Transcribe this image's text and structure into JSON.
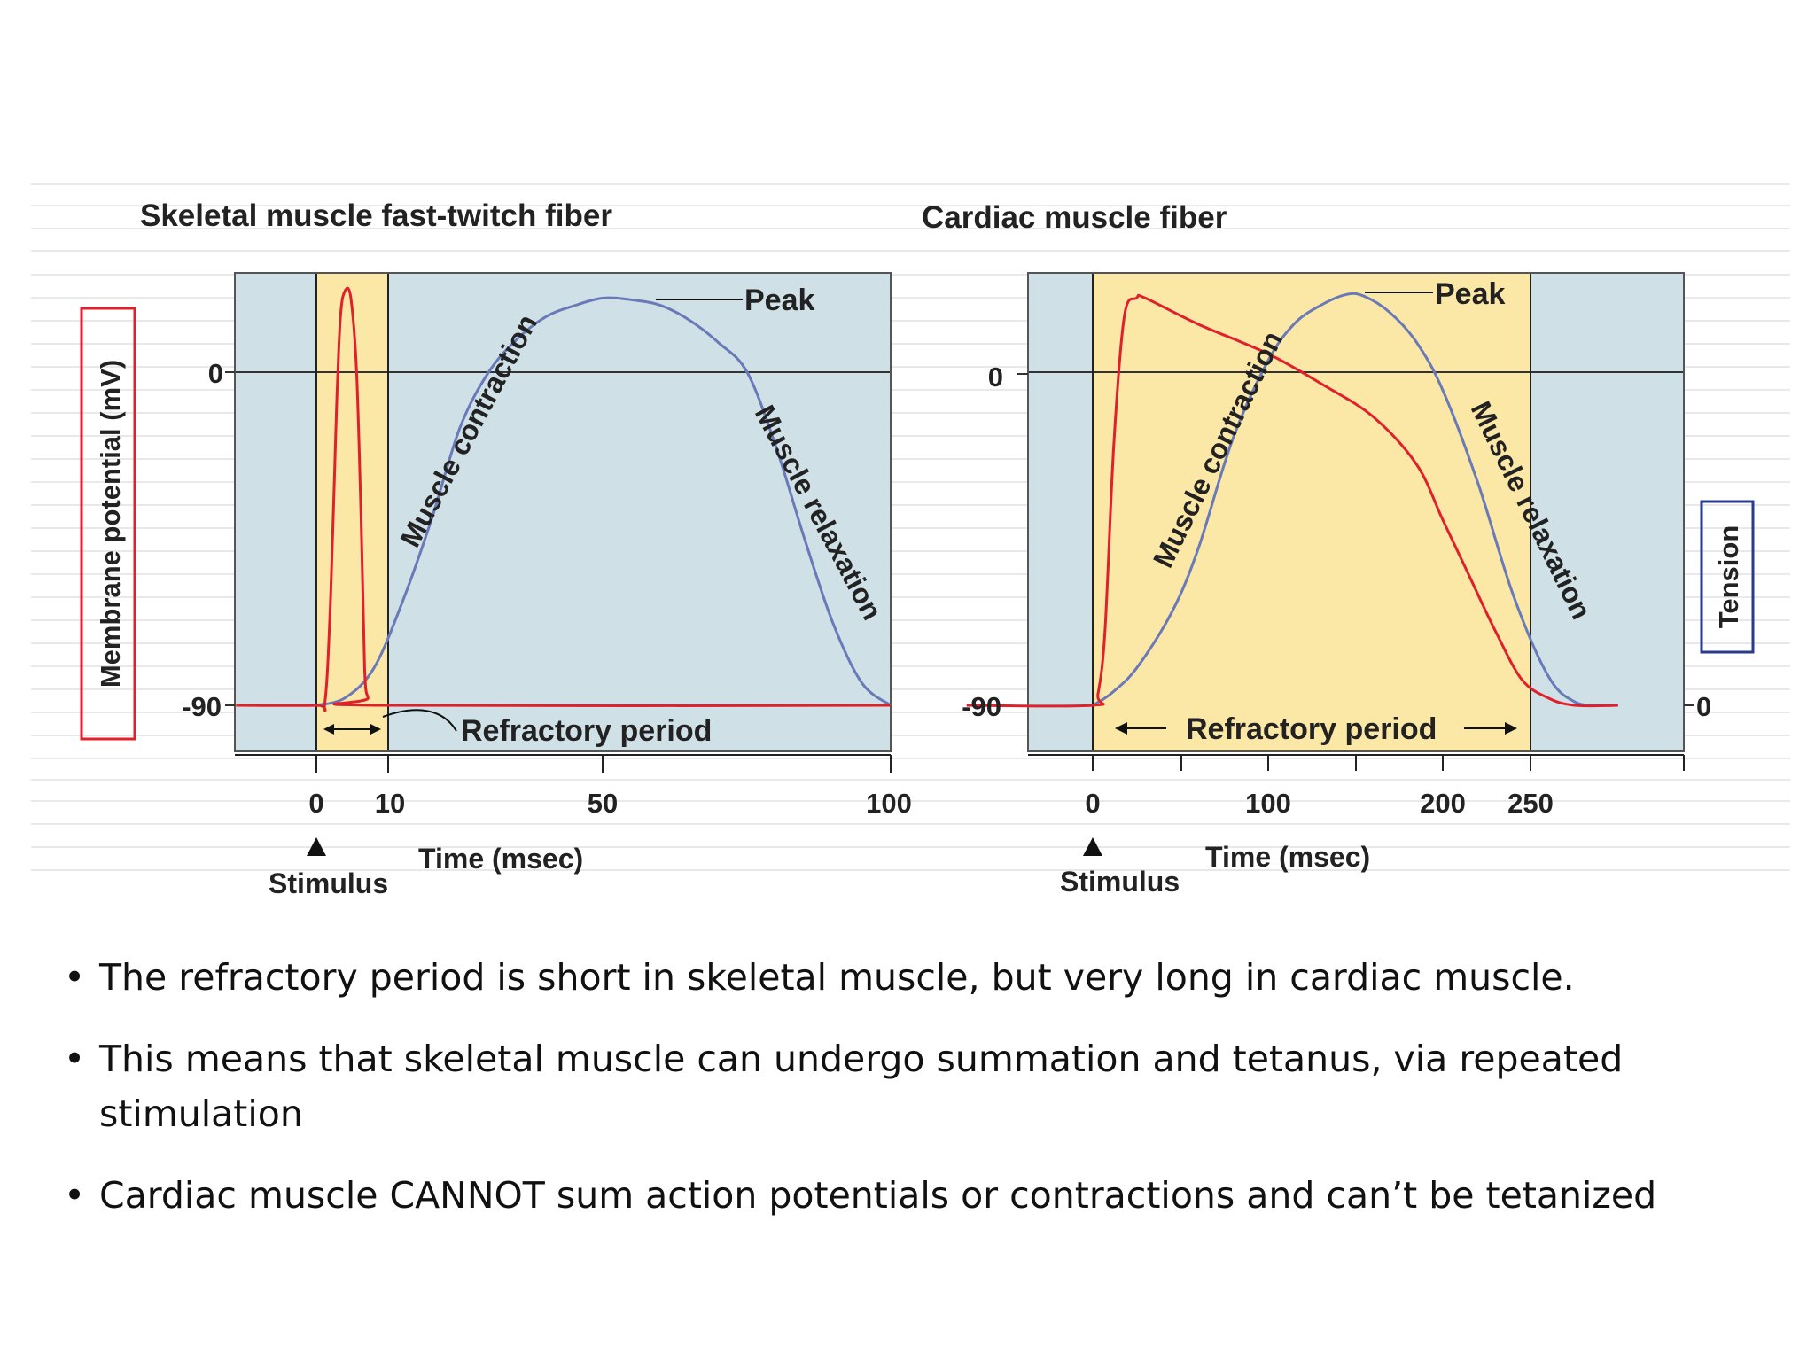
{
  "chart_data": [
    {
      "type": "line",
      "title": "Skeletal muscle fast-twitch fiber",
      "xlabel": "Time (msec)",
      "ylabel": "Membrane potential (mV)",
      "x_ticks": [
        "0",
        "10",
        "50",
        "100"
      ],
      "y_ticks": [
        "0",
        "-90"
      ],
      "xlim": [
        0,
        100
      ],
      "ylim": [
        -110,
        20
      ],
      "stimulus_label": "Stimulus",
      "refractory": {
        "label": "Refractory period",
        "start": 0,
        "end": 10
      },
      "peak_label": "Peak",
      "contraction_label": "Muscle contraction",
      "relaxation_label": "Muscle relaxation",
      "series": [
        {
          "role": "membrane-potential",
          "color": "#e0202a",
          "points": [
            [
              -14,
              -90
            ],
            [
              0,
              -90
            ],
            [
              1.5,
              -89
            ],
            [
              2.5,
              -60
            ],
            [
              3.5,
              -10
            ],
            [
              4.2,
              15
            ],
            [
              5,
              22
            ],
            [
              6,
              20
            ],
            [
              7,
              0
            ],
            [
              7.8,
              -40
            ],
            [
              8.4,
              -80
            ],
            [
              9,
              -88
            ],
            [
              10,
              -90
            ],
            [
              100,
              -90
            ]
          ]
        },
        {
          "role": "tension",
          "color": "#6a7ab8",
          "points": [
            [
              0,
              -90
            ],
            [
              5,
              -88
            ],
            [
              10,
              -80
            ],
            [
              15,
              -62
            ],
            [
              20,
              -40
            ],
            [
              25,
              -15
            ],
            [
              30,
              0
            ],
            [
              35,
              9
            ],
            [
              40,
              15
            ],
            [
              45,
              18
            ],
            [
              50,
              20
            ],
            [
              55,
              19.5
            ],
            [
              60,
              18
            ],
            [
              65,
              14
            ],
            [
              70,
              8
            ],
            [
              75,
              0
            ],
            [
              80,
              -20
            ],
            [
              85,
              -45
            ],
            [
              90,
              -68
            ],
            [
              95,
              -84
            ],
            [
              100,
              -90
            ]
          ]
        }
      ]
    },
    {
      "type": "line",
      "title": "Cardiac muscle fiber",
      "xlabel": "Time (msec)",
      "ylabel": "Tension",
      "x_ticks": [
        "0",
        "100",
        "200",
        "250"
      ],
      "y_ticks": [
        "0",
        "-90"
      ],
      "right_y_ticks": [
        "0"
      ],
      "xlim": [
        0,
        300
      ],
      "ylim": [
        -110,
        20
      ],
      "stimulus_label": "Stimulus",
      "refractory": {
        "label": "Refractory period",
        "start": 0,
        "end": 250
      },
      "peak_label": "Peak",
      "contraction_label": "Muscle contraction",
      "relaxation_label": "Muscle relaxation",
      "series": [
        {
          "role": "membrane-potential",
          "color": "#e0202a",
          "points": [
            [
              -72,
              -90
            ],
            [
              0,
              -90
            ],
            [
              3,
              -87
            ],
            [
              7,
              -70
            ],
            [
              12,
              -20
            ],
            [
              18,
              15
            ],
            [
              25,
              20
            ],
            [
              30,
              20
            ],
            [
              60,
              13
            ],
            [
              100,
              5
            ],
            [
              130,
              -3
            ],
            [
              160,
              -12
            ],
            [
              185,
              -25
            ],
            [
              200,
              -40
            ],
            [
              215,
              -55
            ],
            [
              230,
              -70
            ],
            [
              245,
              -83
            ],
            [
              260,
              -88
            ],
            [
              275,
              -90
            ],
            [
              300,
              -90
            ]
          ]
        },
        {
          "role": "tension",
          "color": "#6a7ab8",
          "points": [
            [
              0,
              -90
            ],
            [
              10,
              -87
            ],
            [
              25,
              -80
            ],
            [
              45,
              -65
            ],
            [
              60,
              -48
            ],
            [
              80,
              -18
            ],
            [
              100,
              3
            ],
            [
              115,
              13
            ],
            [
              130,
              18
            ],
            [
              145,
              21
            ],
            [
              155,
              20.5
            ],
            [
              170,
              16
            ],
            [
              185,
              8
            ],
            [
              200,
              -5
            ],
            [
              220,
              -30
            ],
            [
              240,
              -60
            ],
            [
              260,
              -82
            ],
            [
              275,
              -89
            ],
            [
              290,
              -90
            ],
            [
              300,
              -90
            ]
          ]
        }
      ]
    }
  ],
  "bullets": [
    "The refractory period is short in skeletal muscle, but very long in cardiac muscle.",
    "This means that skeletal muscle can undergo summation and tetanus, via repeated stimulation",
    "Cardiac muscle CANNOT sum action potentials or contractions and can’t be tetanized"
  ],
  "colors": {
    "panel_bg": "#cfe1e6",
    "refractory_bg": "#fbe7a6",
    "potential_line": "#e0202a",
    "tension_line": "#6a7ab8",
    "ylabel_box_left": "#e0202a",
    "ylabel_box_right": "#2a3a8c"
  }
}
